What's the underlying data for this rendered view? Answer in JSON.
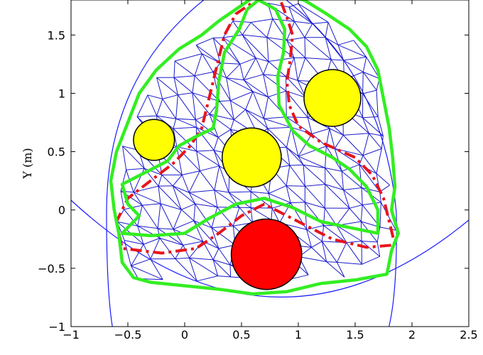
{
  "chart_data": {
    "type": "scatter",
    "title": "",
    "xlabel": "",
    "ylabel": "Y (m)",
    "xlim": [
      -1,
      2.5
    ],
    "ylim": [
      -1,
      1.8
    ],
    "xticks": [
      -1,
      -0.5,
      0,
      0.5,
      1,
      1.5,
      2,
      2.5
    ],
    "xtick_labels": [
      "−1",
      "−0.5",
      "0",
      "0.5",
      "1",
      "1.5",
      "2",
      "2.5"
    ],
    "yticks": [
      -1,
      -0.5,
      0,
      0.5,
      1,
      1.5
    ],
    "ytick_labels": [
      "−1",
      "−0.5",
      "0",
      "0.5",
      "1",
      "1.5"
    ],
    "grid": false,
    "legend": "none",
    "obstacles": [
      {
        "kind": "goal",
        "cx": 0.72,
        "cy": -0.38,
        "r": 0.31,
        "color": "#ff0000"
      },
      {
        "kind": "obstacle",
        "cx": 0.59,
        "cy": 0.45,
        "r": 0.26,
        "color": "#ffff00"
      },
      {
        "kind": "obstacle",
        "cx": 1.3,
        "cy": 0.96,
        "r": 0.25,
        "color": "#ffff00"
      },
      {
        "kind": "obstacle",
        "cx": -0.27,
        "cy": 0.6,
        "r": 0.18,
        "color": "#ffff00"
      }
    ],
    "series": [
      {
        "style": "red-dashdot",
        "color": "#e8141c",
        "points": [
          [
            0.85,
            1.78
          ],
          [
            0.9,
            1.65
          ],
          [
            0.95,
            1.5
          ],
          [
            0.93,
            1.3
          ],
          [
            0.9,
            1.1
          ],
          [
            0.92,
            0.9
          ],
          [
            1.0,
            0.72
          ],
          [
            1.2,
            0.58
          ],
          [
            1.5,
            0.45
          ],
          [
            1.65,
            0.3
          ],
          [
            1.75,
            0.1
          ],
          [
            1.8,
            -0.1
          ],
          [
            1.85,
            -0.3
          ],
          [
            1.6,
            -0.32
          ],
          [
            1.3,
            -0.25
          ],
          [
            1.0,
            -0.1
          ],
          [
            0.7,
            0.05
          ],
          [
            0.5,
            -0.05
          ],
          [
            0.3,
            -0.2
          ],
          [
            0.1,
            -0.33
          ],
          [
            -0.2,
            -0.37
          ],
          [
            -0.55,
            -0.33
          ],
          [
            -0.6,
            -0.1
          ],
          [
            -0.5,
            0.1
          ],
          [
            -0.3,
            0.25
          ],
          [
            -0.1,
            0.4
          ],
          [
            0.05,
            0.55
          ],
          [
            0.15,
            0.7
          ],
          [
            0.2,
            0.9
          ],
          [
            0.25,
            1.1
          ],
          [
            0.3,
            1.3
          ],
          [
            0.35,
            1.5
          ],
          [
            0.45,
            1.68
          ],
          [
            0.6,
            1.78
          ]
        ]
      },
      {
        "style": "green-outer",
        "color": "#33ee22",
        "points": [
          [
            0.45,
            1.72
          ],
          [
            0.6,
            1.82
          ],
          [
            0.85,
            1.84
          ],
          [
            1.05,
            1.8
          ],
          [
            1.25,
            1.68
          ],
          [
            1.45,
            1.55
          ],
          [
            1.6,
            1.4
          ],
          [
            1.7,
            1.2
          ],
          [
            1.75,
            0.95
          ],
          [
            1.8,
            0.7
          ],
          [
            1.83,
            0.45
          ],
          [
            1.85,
            0.2
          ],
          [
            1.82,
            0.0
          ],
          [
            1.88,
            -0.2
          ],
          [
            1.82,
            -0.35
          ],
          [
            1.78,
            -0.55
          ],
          [
            1.5,
            -0.6
          ],
          [
            1.2,
            -0.63
          ],
          [
            0.9,
            -0.7
          ],
          [
            0.6,
            -0.72
          ],
          [
            0.3,
            -0.68
          ],
          [
            0.0,
            -0.65
          ],
          [
            -0.3,
            -0.62
          ],
          [
            -0.45,
            -0.58
          ],
          [
            -0.55,
            -0.45
          ],
          [
            -0.58,
            -0.2
          ],
          [
            -0.62,
            0.0
          ],
          [
            -0.65,
            0.25
          ],
          [
            -0.6,
            0.5
          ],
          [
            -0.5,
            0.75
          ],
          [
            -0.4,
            1.0
          ],
          [
            -0.25,
            1.2
          ],
          [
            -0.05,
            1.38
          ],
          [
            0.15,
            1.5
          ],
          [
            0.3,
            1.62
          ],
          [
            0.45,
            1.72
          ]
        ]
      },
      {
        "style": "green-inner",
        "color": "#33ee22",
        "points": [
          [
            0.55,
            1.72
          ],
          [
            0.48,
            1.55
          ],
          [
            0.35,
            1.35
          ],
          [
            0.3,
            1.1
          ],
          [
            0.28,
            0.85
          ],
          [
            0.25,
            0.7
          ],
          [
            0.08,
            0.62
          ],
          [
            -0.05,
            0.55
          ],
          [
            -0.15,
            0.42
          ],
          [
            -0.35,
            0.32
          ],
          [
            -0.55,
            0.22
          ],
          [
            -0.5,
            0.05
          ],
          [
            -0.4,
            -0.05
          ],
          [
            -0.55,
            -0.2
          ],
          [
            -0.3,
            -0.22
          ],
          [
            0.0,
            -0.2
          ],
          [
            0.2,
            -0.08
          ],
          [
            0.45,
            0.05
          ],
          [
            0.7,
            0.1
          ],
          [
            0.95,
            0.02
          ],
          [
            1.2,
            -0.1
          ],
          [
            1.45,
            -0.15
          ],
          [
            1.7,
            -0.2
          ],
          [
            1.7,
            0.0
          ],
          [
            1.6,
            0.2
          ],
          [
            1.45,
            0.35
          ],
          [
            1.3,
            0.45
          ],
          [
            1.1,
            0.55
          ],
          [
            0.95,
            0.68
          ],
          [
            0.83,
            0.9
          ],
          [
            0.82,
            1.15
          ],
          [
            0.87,
            1.35
          ],
          [
            0.88,
            1.55
          ],
          [
            0.8,
            1.72
          ],
          [
            0.65,
            1.8
          ],
          [
            0.55,
            1.72
          ]
        ]
      }
    ]
  }
}
